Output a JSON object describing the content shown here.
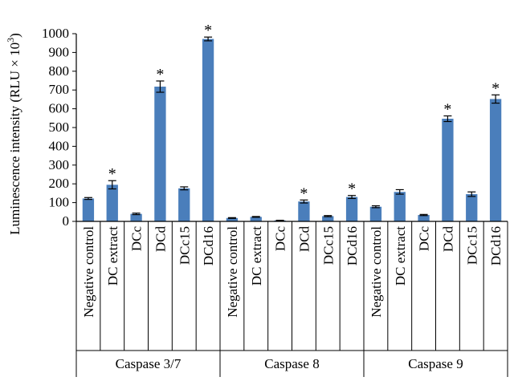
{
  "chart_data": {
    "type": "bar",
    "ylabel": "Luminescence intensity (RLU × 10",
    "ylabel_exponent": "3",
    "ylabel_close": ")",
    "ylim": [
      0,
      1000
    ],
    "yticks": [
      "0",
      "100",
      "200",
      "300",
      "400",
      "500",
      "600",
      "700",
      "800",
      "900",
      "1000"
    ],
    "bar_color": "#4a7ebb",
    "groups": [
      {
        "name": "Caspase 3/7",
        "categories": [
          "Negative control",
          "DC extract",
          "DCc",
          "DCd",
          "DCc15",
          "DCd16"
        ],
        "values": [
          122,
          195,
          40,
          718,
          176,
          972
        ],
        "errors": [
          5,
          22,
          4,
          30,
          8,
          10
        ],
        "significant": [
          false,
          true,
          false,
          true,
          false,
          true
        ]
      },
      {
        "name": "Caspase 8",
        "categories": [
          "Negative control",
          "DC extract",
          "DCc",
          "DCd",
          "DCc15",
          "DCd16"
        ],
        "values": [
          18,
          24,
          5,
          106,
          28,
          130
        ],
        "errors": [
          2,
          2,
          1,
          8,
          3,
          8
        ],
        "significant": [
          false,
          false,
          false,
          true,
          false,
          true
        ]
      },
      {
        "name": "Caspase 9",
        "categories": [
          "Negative control",
          "DC extract",
          "DCc",
          "DCd",
          "DCc15",
          "DCd16"
        ],
        "values": [
          78,
          157,
          34,
          547,
          145,
          652
        ],
        "errors": [
          5,
          12,
          3,
          15,
          12,
          22
        ],
        "significant": [
          false,
          false,
          false,
          true,
          false,
          true
        ]
      }
    ],
    "significance_marker": "*"
  }
}
